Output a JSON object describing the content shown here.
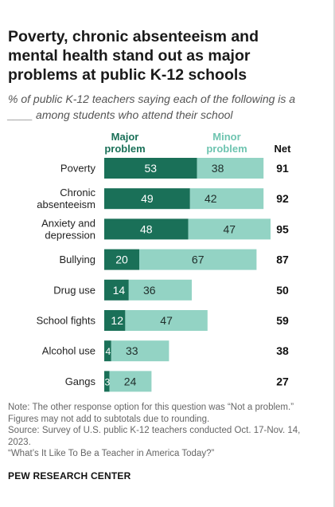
{
  "title": "Poverty, chronic absenteeism and mental health stand out as major problems at public K-12 schools",
  "subtitle": "% of public K-12 teachers saying each of the following is a ____ among students who attend their school",
  "colors": {
    "major": "#1a7058",
    "minor": "#93d3c4",
    "major_text": "#1a7058",
    "minor_text": "#6ec4b0"
  },
  "chart_data": {
    "type": "bar",
    "orientation": "horizontal",
    "stacked": true,
    "categories": [
      [
        "Poverty"
      ],
      [
        "Chronic",
        "absenteeism"
      ],
      [
        "Anxiety and",
        "depression"
      ],
      [
        "Bullying"
      ],
      [
        "Drug use"
      ],
      [
        "School fights"
      ],
      [
        "Alcohol use"
      ],
      [
        "Gangs"
      ]
    ],
    "series": [
      {
        "name": "Major problem",
        "header": [
          "Major",
          "problem"
        ],
        "values": [
          53,
          49,
          48,
          20,
          14,
          12,
          4,
          3
        ]
      },
      {
        "name": "Minor problem",
        "header": [
          "Minor",
          "problem"
        ],
        "values": [
          38,
          42,
          47,
          67,
          36,
          47,
          33,
          24
        ]
      }
    ],
    "net_label": "Net",
    "net": [
      91,
      92,
      95,
      87,
      50,
      59,
      38,
      27
    ],
    "xlim": [
      0,
      100
    ],
    "legend": "top"
  },
  "notes": [
    "Note: The other response option for this question was “Not a problem.” Figures may not add to subtotals due to rounding.",
    "Source: Survey of U.S. public K-12 teachers conducted Oct. 17-Nov. 14, 2023.",
    "“What’s It Like To Be a Teacher in America Today?”"
  ],
  "footer": "PEW RESEARCH CENTER"
}
